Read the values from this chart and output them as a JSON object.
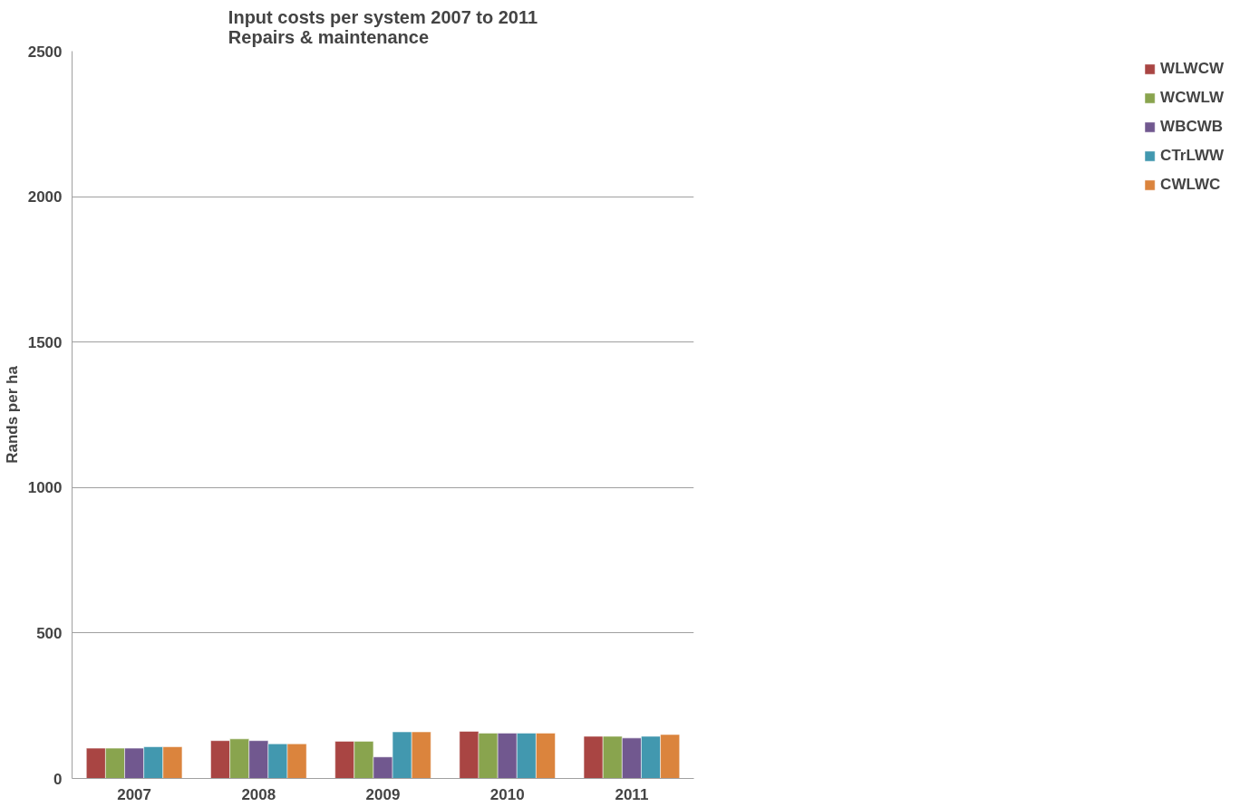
{
  "chart_data": {
    "type": "bar",
    "title": "Input costs per system 2007 to 2011\nRepairs & maintenance",
    "ylabel": "Rands per ha",
    "categories": [
      "2007",
      "2008",
      "2009",
      "2010",
      "2011"
    ],
    "series": [
      {
        "name": "WLWCW",
        "color": "#a94543",
        "values": [
          104,
          130,
          128,
          162,
          145
        ]
      },
      {
        "name": "WCWLW",
        "color": "#89a44e",
        "values": [
          104,
          136,
          128,
          156,
          145
        ]
      },
      {
        "name": "WBCWB",
        "color": "#71588f",
        "values": [
          104,
          130,
          74,
          156,
          139
        ]
      },
      {
        "name": "CTrLWW",
        "color": "#4298af",
        "values": [
          109,
          119,
          160,
          156,
          145
        ]
      },
      {
        "name": "CWLWC",
        "color": "#db843d",
        "values": [
          109,
          119,
          160,
          156,
          151
        ]
      }
    ],
    "ylim": [
      0,
      2500
    ],
    "yticks": [
      0,
      500,
      1000,
      1500,
      2000,
      2500
    ],
    "grid": "y",
    "legend": "right"
  }
}
